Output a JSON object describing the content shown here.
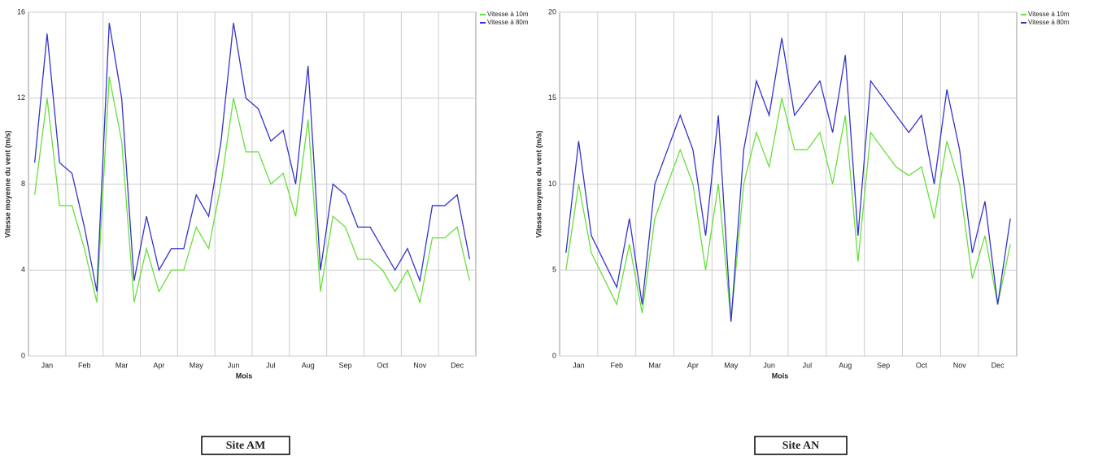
{
  "chart_data": [
    {
      "type": "line",
      "caption": "Site AM",
      "y_label": "Vitesse moyenne du vent (m/s)",
      "x_label": "Mois",
      "categories": [
        null,
        "Jan",
        null,
        null,
        "Feb",
        null,
        null,
        "Mar",
        null,
        null,
        "Apr",
        null,
        null,
        "May",
        null,
        null,
        "Jun",
        null,
        null,
        "Jul",
        null,
        null,
        "Aug",
        null,
        null,
        "Sep",
        null,
        null,
        "Oct",
        null,
        null,
        "Nov",
        null,
        null,
        "Dec",
        null
      ],
      "series": [
        {
          "name": "Vitesse à 10m",
          "color": "#66e03a",
          "values": [
            7.5,
            12,
            7,
            7,
            5,
            2.5,
            13,
            10,
            2.5,
            5,
            3,
            4,
            4,
            6,
            5,
            8,
            12,
            9.5,
            9.5,
            8,
            8.5,
            6.5,
            11,
            3,
            6.5,
            6,
            4.5,
            4.5,
            4,
            3,
            4,
            2.5,
            5.5,
            5.5,
            6,
            3.5
          ]
        },
        {
          "name": "Vitesse à 80m",
          "color": "#3333cc",
          "values": [
            9,
            15,
            9,
            8.5,
            6,
            3,
            15.5,
            12,
            3.5,
            6.5,
            4,
            5,
            5,
            7.5,
            6.5,
            10,
            15.5,
            12,
            11.5,
            10,
            10.5,
            8,
            13.5,
            4,
            8,
            7.5,
            6,
            6,
            5,
            4,
            5,
            3.5,
            7,
            7,
            7.5,
            4.5
          ]
        }
      ],
      "ylim": [
        0,
        16
      ],
      "yticks": [
        0,
        4,
        8,
        12,
        16
      ],
      "grid": true,
      "legend": "top-right"
    },
    {
      "type": "line",
      "caption": "Site AN",
      "y_label": "Vitesse moyenne du vent (m/s)",
      "x_label": "Mois",
      "categories": [
        null,
        "Jan",
        null,
        null,
        "Feb",
        null,
        null,
        "Mar",
        null,
        null,
        "Apr",
        null,
        null,
        "May",
        null,
        null,
        "Jun",
        null,
        null,
        "Jul",
        null,
        null,
        "Aug",
        null,
        null,
        "Sep",
        null,
        null,
        "Oct",
        null,
        null,
        "Nov",
        null,
        null,
        "Dec",
        null
      ],
      "series": [
        {
          "name": "Vitesse à 10m",
          "color": "#66e03a",
          "values": [
            5,
            10,
            6,
            4.5,
            3,
            6.5,
            2.5,
            8,
            10,
            12,
            10,
            5,
            10,
            2,
            10,
            13,
            11,
            15,
            12,
            12,
            13,
            10,
            14,
            5.5,
            13,
            12,
            11,
            10.5,
            11,
            8,
            12.5,
            10,
            4.5,
            7,
            3,
            6.5
          ]
        },
        {
          "name": "Vitesse à 80m",
          "color": "#3333cc",
          "values": [
            6,
            12.5,
            7,
            5.5,
            4,
            8,
            3,
            10,
            12,
            14,
            12,
            7,
            14,
            2,
            12,
            16,
            14,
            18.5,
            14,
            15,
            16,
            13,
            17.5,
            7,
            16,
            15,
            14,
            13,
            14,
            10,
            15.5,
            12,
            6,
            9,
            3,
            8
          ]
        }
      ],
      "ylim": [
        0,
        20
      ],
      "yticks": [
        0,
        5,
        10,
        15,
        20
      ],
      "grid": true,
      "legend": "top-right"
    }
  ]
}
